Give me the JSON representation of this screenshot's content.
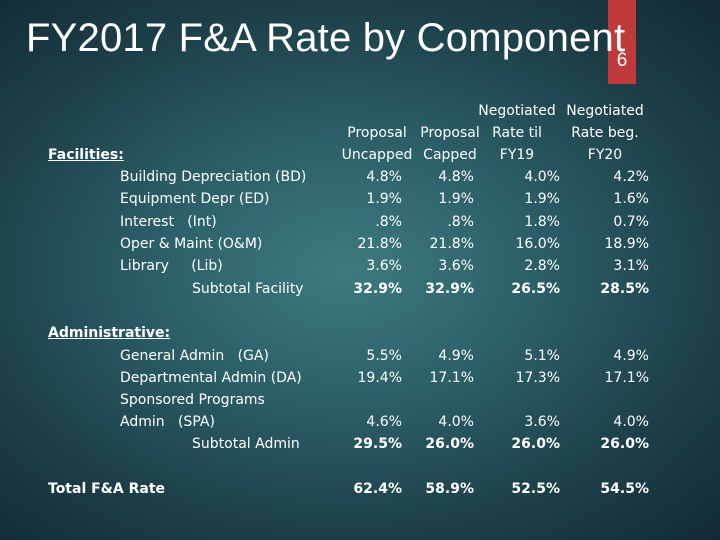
{
  "slide": {
    "title": "FY2017 F&A Rate by Component",
    "page_number": "6"
  },
  "headers": {
    "col1": {
      "line1": "Proposal",
      "line2": "Uncapped"
    },
    "col2": {
      "line1": "Proposal",
      "line2": "Capped"
    },
    "col3": {
      "line0": "Negotiated",
      "line1": "Rate til",
      "line2": "FY19"
    },
    "col4": {
      "line0": "Negotiated",
      "line1": "Rate beg.",
      "line2": "FY20"
    }
  },
  "facilities": {
    "heading": "Facilities:",
    "rows": [
      {
        "label": "Building Depreciation (BD)",
        "v": [
          "4.8%",
          "4.8%",
          "4.0%",
          "4.2%"
        ]
      },
      {
        "label": "Equipment Depr (ED)",
        "v": [
          "1.9%",
          "1.9%",
          "1.9%",
          "1.6%"
        ]
      },
      {
        "label": "Interest   (Int)",
        "v": [
          ".8%",
          ".8%",
          "1.8%",
          "0.7%"
        ]
      },
      {
        "label": "Oper & Maint (O&M)",
        "v": [
          "21.8%",
          "21.8%",
          "16.0%",
          "18.9%"
        ]
      },
      {
        "label": "Library     (Lib)",
        "v": [
          "3.6%",
          "3.6%",
          "2.8%",
          "3.1%"
        ]
      }
    ],
    "subtotal": {
      "label": "Subtotal Facility",
      "v": [
        "32.9%",
        "32.9%",
        "26.5%",
        "28.5%"
      ]
    }
  },
  "administrative": {
    "heading": "Administrative:",
    "rows": [
      {
        "label": "General Admin   (GA)",
        "v": [
          "5.5%",
          "4.9%",
          "5.1%",
          "4.9%"
        ]
      },
      {
        "label": "Departmental Admin (DA)",
        "v": [
          "19.4%",
          "17.1%",
          "17.3%",
          "17.1%"
        ]
      },
      {
        "label_line1": "Sponsored Programs",
        "label_line2": "Admin   (SPA)",
        "v": [
          "4.6%",
          "4.0%",
          "3.6%",
          "4.0%"
        ]
      }
    ],
    "subtotal": {
      "label": "Subtotal Admin",
      "v": [
        "29.5%",
        "26.0%",
        "26.0%",
        "26.0%"
      ]
    }
  },
  "total": {
    "label": "Total F&A Rate",
    "v": [
      "62.4%",
      "58.9%",
      "52.5%",
      "54.5%"
    ]
  }
}
